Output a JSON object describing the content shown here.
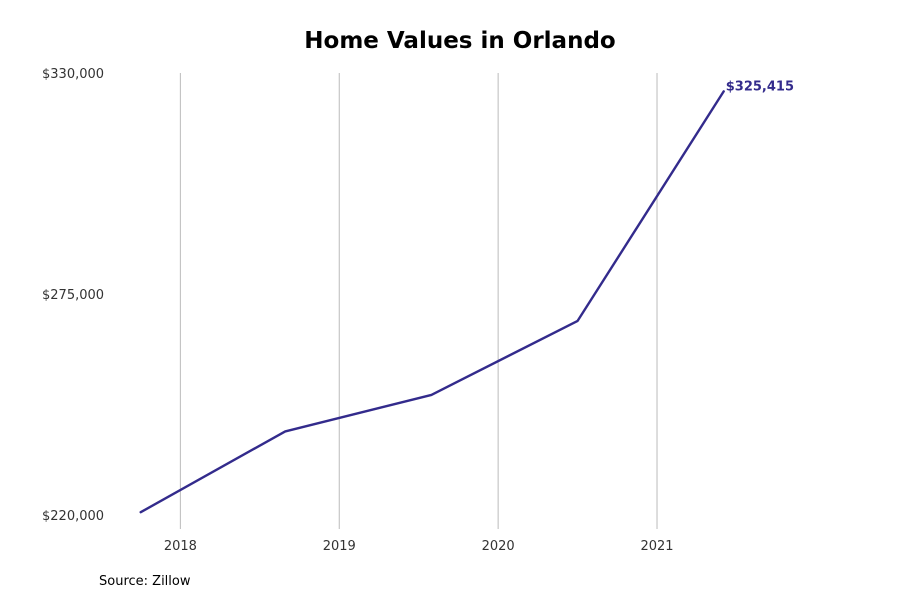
{
  "chart_data": {
    "type": "line",
    "title": "Home Values in Orlando",
    "xlabel": "",
    "ylabel": "",
    "xlim": [
      2017.62,
      2021.9
    ],
    "ylim": [
      220000,
      330000
    ],
    "x_ticks": [
      2018,
      2019,
      2020,
      2021
    ],
    "y_ticks": [
      220000,
      275000,
      330000
    ],
    "y_tick_labels": [
      "$220,000",
      "$275,000",
      "$330,000"
    ],
    "grid": "vertical",
    "line_color": "#332b8c",
    "grid_color": "#bbbbbb",
    "series": [
      {
        "x": [
          2017.75,
          2018.66,
          2019.58,
          2020.5,
          2021.42
        ],
        "y": [
          220700,
          240800,
          249900,
          268300,
          325415
        ]
      }
    ],
    "end_label": "$325,415"
  },
  "source": "Source: Zillow"
}
